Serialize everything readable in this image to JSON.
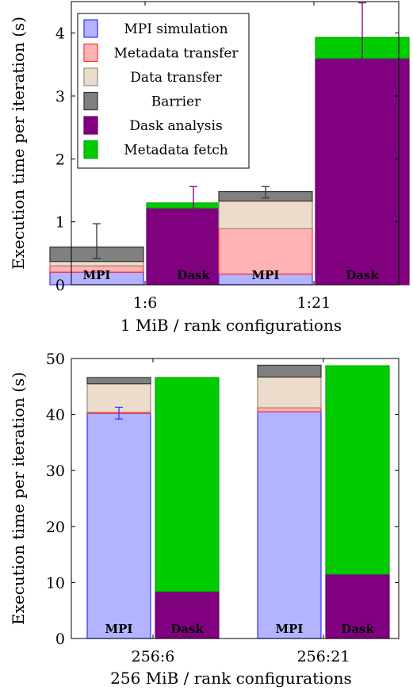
{
  "chart_data": [
    {
      "type": "bar",
      "stacked": true,
      "title": "",
      "xlabel": "1 MiB / rank configurations",
      "ylabel": "Execution time per iteration (s)",
      "ylim": [
        0,
        4.5
      ],
      "yticks": [
        0,
        1,
        2,
        3,
        4
      ],
      "grid": false,
      "legend": "top-left",
      "categories": [
        "1:6",
        "1:21"
      ],
      "bar_labels": [
        "MPI",
        "Dask"
      ],
      "series": [
        {
          "name": "MPI simulation",
          "color": "#b3b3ff",
          "edge": "#3333ff",
          "values": {
            "MPI": [
              0.2,
              0.17
            ]
          }
        },
        {
          "name": "Metadata transfer",
          "color": "#ffb3b3",
          "edge": "#ff3333",
          "values": {
            "MPI": [
              0.1,
              0.72
            ]
          }
        },
        {
          "name": "Data transfer",
          "color": "#ecdccb",
          "edge": "#a08a76",
          "values": {
            "MPI": [
              0.07,
              0.44
            ]
          }
        },
        {
          "name": "Barrier",
          "color": "#808080",
          "edge": "#333333",
          "values": {
            "MPI": [
              0.23,
              0.15
            ]
          }
        },
        {
          "name": "Dask analysis",
          "color": "#800080",
          "edge": "#660066",
          "values": {
            "Dask": [
              1.22,
              3.6
            ]
          }
        },
        {
          "name": "Metadata fetch",
          "color": "#00cc00",
          "edge": "#00aa00",
          "values": {
            "Dask": [
              0.08,
              0.33
            ]
          }
        }
      ],
      "error_bars": [
        {
          "bar": "MPI",
          "category": "1:6",
          "center": 0.6,
          "low": 0.42,
          "high": 0.97,
          "color": "#333333"
        },
        {
          "bar": "Dask",
          "category": "1:6",
          "center": 1.3,
          "low": 1.08,
          "high": 1.56,
          "color": "#800080"
        },
        {
          "bar": "MPI",
          "category": "1:21",
          "center": 1.47,
          "low": 1.38,
          "high": 1.56,
          "color": "#333333"
        },
        {
          "bar": "Dask",
          "category": "1:21",
          "center": 3.93,
          "low": 3.18,
          "high": 4.48,
          "color": "#800080"
        }
      ]
    },
    {
      "type": "bar",
      "stacked": true,
      "title": "",
      "xlabel": "256 MiB / rank configurations",
      "ylabel": "Execution time per iteration (s)",
      "ylim": [
        0,
        50
      ],
      "yticks": [
        0,
        10,
        20,
        30,
        40,
        50
      ],
      "grid": false,
      "categories": [
        "256:6",
        "256:21"
      ],
      "bar_labels": [
        "MPI",
        "Dask"
      ],
      "series": [
        {
          "name": "MPI simulation",
          "color": "#b3b3ff",
          "edge": "#3333ff",
          "values": {
            "MPI": [
              40.2,
              40.5
            ]
          }
        },
        {
          "name": "Metadata transfer",
          "color": "#ffb3b3",
          "edge": "#ff3333",
          "values": {
            "MPI": [
              0.2,
              0.7
            ]
          }
        },
        {
          "name": "Data transfer",
          "color": "#ecdccb",
          "edge": "#a08a76",
          "values": {
            "MPI": [
              5.1,
              5.5
            ]
          }
        },
        {
          "name": "Barrier",
          "color": "#808080",
          "edge": "#333333",
          "values": {
            "MPI": [
              1.1,
              2.1
            ]
          }
        },
        {
          "name": "Dask analysis",
          "color": "#800080",
          "edge": "#660066",
          "values": {
            "Dask": [
              8.4,
              11.5
            ]
          }
        },
        {
          "name": "Metadata fetch",
          "color": "#00cc00",
          "edge": "#00aa00",
          "values": {
            "Dask": [
              38.2,
              37.2
            ]
          }
        }
      ],
      "error_bars": [
        {
          "bar": "MPI",
          "category": "256:6",
          "center": 40.2,
          "low": 39.2,
          "high": 41.3,
          "color": "#3333ff"
        }
      ]
    }
  ]
}
